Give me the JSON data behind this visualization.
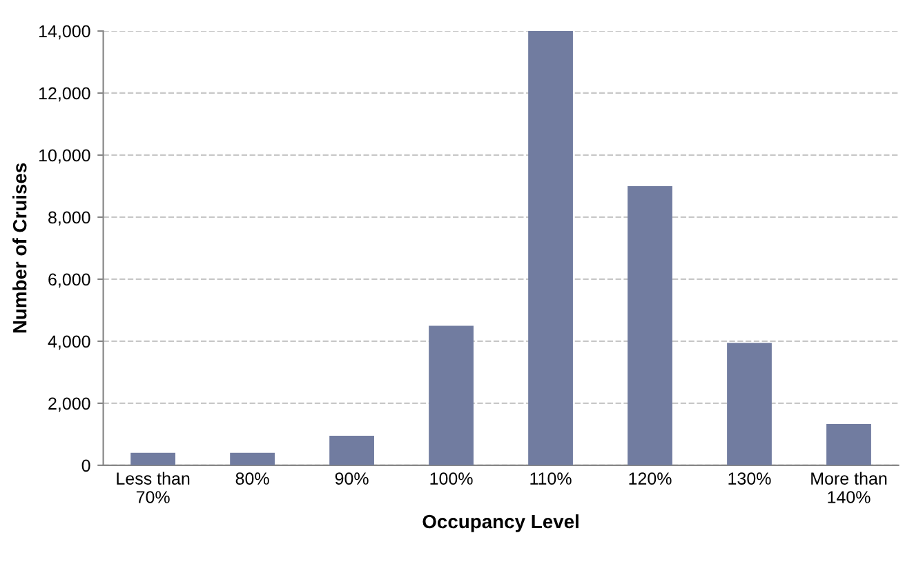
{
  "chart_data": {
    "type": "bar",
    "xlabel": "Occupancy Level",
    "ylabel": "Number of Cruises",
    "categories": [
      "Less than\n70%",
      "80%",
      "90%",
      "100%",
      "110%",
      "120%",
      "130%",
      "More than\n140%"
    ],
    "values": [
      400,
      400,
      950,
      4500,
      14000,
      9000,
      3950,
      1330
    ],
    "color": "#717ca0",
    "ylim": [
      0,
      14000
    ],
    "yticks": [
      {
        "value": 0,
        "label": "0"
      },
      {
        "value": 2000,
        "label": "2,000"
      },
      {
        "value": 4000,
        "label": "4,000"
      },
      {
        "value": 6000,
        "label": "6,000"
      },
      {
        "value": 8000,
        "label": "8,000"
      },
      {
        "value": 10000,
        "label": "10,000"
      },
      {
        "value": 12000,
        "label": "12,000"
      },
      {
        "value": 14000,
        "label": "14,000"
      }
    ],
    "grid": "y",
    "legend": false
  }
}
